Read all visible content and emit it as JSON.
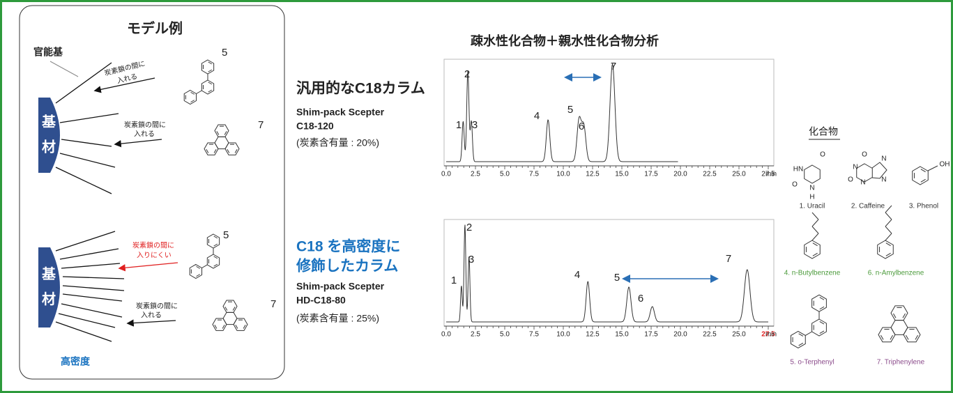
{
  "model": {
    "title": "モデル例",
    "functional_group": "官能基",
    "normal": {
      "substrate": [
        "基",
        "材"
      ],
      "notes": [
        [
          "炭素鎖の間に",
          "入れる"
        ],
        [
          "炭素鎖の間に",
          "入れる"
        ]
      ],
      "compound_numbers": [
        "5",
        "7"
      ]
    },
    "high_density": {
      "substrate": [
        "基",
        "材"
      ],
      "notes": [
        [
          "炭素鎖の間に",
          "入りにくい"
        ],
        [
          "炭素鎖の間に",
          "入れる"
        ]
      ],
      "compound_numbers": [
        "5",
        "7"
      ],
      "label": "高密度"
    }
  },
  "analysis": {
    "title": "疎水性化合物＋親水性化合物分析",
    "columns": [
      {
        "heading": [
          "汎用的なC18カラム"
        ],
        "name": [
          "Shim-pack Scepter",
          "C18-120"
        ],
        "carbon": "(炭素含有量 : 20%)",
        "x_ticks": [
          "0.0",
          "2.5",
          "5.0",
          "7.5",
          "10.0",
          "12.5",
          "15.0",
          "17.5",
          "20.0",
          "22.5",
          "25.0",
          "27.5"
        ],
        "x_unit": "min",
        "peaks": [
          "1",
          "2",
          "3",
          "4",
          "5",
          "6",
          "7"
        ]
      },
      {
        "heading": [
          "C18 を高密度に",
          "修飾したカラム"
        ],
        "name": [
          "Shim-pack Scepter",
          "HD-C18-80"
        ],
        "carbon": "(炭素含有量 : 25%)",
        "x_ticks": [
          "0.0",
          "2.5",
          "5.0",
          "7.5",
          "10.0",
          "12.5",
          "15.0",
          "17.5",
          "20.0",
          "22.5",
          "25.0",
          "27.5"
        ],
        "x_unit": "min",
        "peaks": [
          "1",
          "2",
          "3",
          "4",
          "5",
          "6",
          "7"
        ]
      }
    ]
  },
  "compounds": {
    "title": "化合物",
    "items": [
      {
        "label": "1. Uracil",
        "atoms": [
          "O",
          "HN",
          "N",
          "H",
          "O"
        ]
      },
      {
        "label": "2. Caffeine",
        "atoms": [
          "O",
          "N",
          "N",
          "O",
          "N",
          "N"
        ]
      },
      {
        "label": "3. Phenol",
        "atoms": [
          "OH"
        ]
      },
      {
        "label": "4. n-Butylbenzene"
      },
      {
        "label": "6. n-Amylbenzene"
      },
      {
        "label": "5. o-Terphenyl"
      },
      {
        "label": "7. Triphenylene"
      }
    ]
  }
}
